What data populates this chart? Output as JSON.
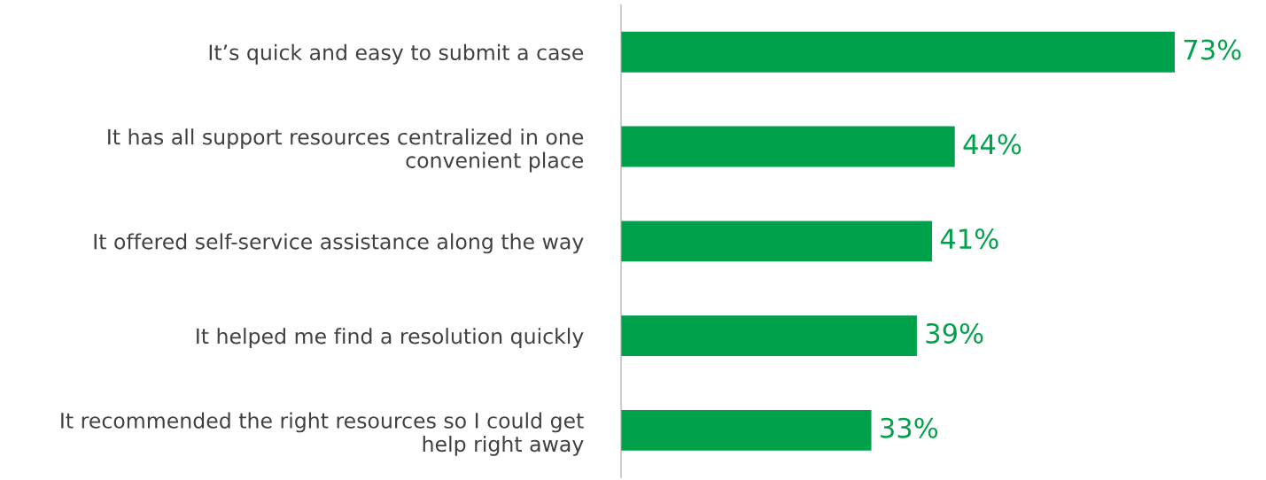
{
  "chart_data": {
    "type": "bar",
    "orientation": "horizontal",
    "categories": [
      "It’s quick and easy to submit a case",
      "It has all support resources centralized in one\nconvenient place",
      "It offered self-service assistance along the way",
      "It helped me find a resolution quickly",
      "It recommended the right resources so I could get\nhelp right away"
    ],
    "values": [
      73,
      44,
      41,
      39,
      33
    ],
    "color": "#00a14b",
    "data_labels": true,
    "value_labels": [
      "73%",
      "44%",
      "41%",
      "39%",
      "33%"
    ],
    "tick_labels": "y",
    "grid": false,
    "legend": false
  }
}
